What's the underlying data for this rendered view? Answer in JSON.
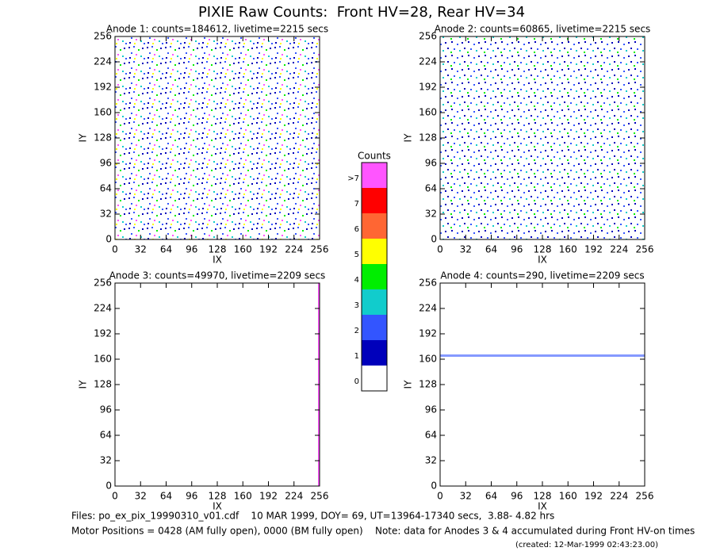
{
  "title": "PIXIE Raw Counts:  Front HV=28, Rear HV=34",
  "chart_data": [
    {
      "type": "heatmap",
      "title": "Anode 1: counts=184612, livetime=2215 secs",
      "xlabel": "IX",
      "ylabel": "IY",
      "xlim": [
        0,
        256
      ],
      "ylim": [
        0,
        256
      ],
      "xticks": [
        0,
        32,
        64,
        96,
        128,
        160,
        192,
        224,
        256
      ],
      "yticks": [
        0,
        32,
        64,
        96,
        128,
        160,
        192,
        224,
        256
      ]
    },
    {
      "type": "heatmap",
      "title": "Anode 2: counts=60865, livetime=2215 secs",
      "xlabel": "IX",
      "ylabel": "IY",
      "xlim": [
        0,
        256
      ],
      "ylim": [
        0,
        256
      ],
      "xticks": [
        0,
        32,
        64,
        96,
        128,
        160,
        192,
        224,
        256
      ],
      "yticks": [
        0,
        32,
        64,
        96,
        128,
        160,
        192,
        224,
        256
      ]
    },
    {
      "type": "heatmap",
      "title": "Anode 3: counts=49970, livetime=2209 secs",
      "xlabel": "IX",
      "ylabel": "IY",
      "xlim": [
        0,
        256
      ],
      "ylim": [
        0,
        256
      ],
      "xticks": [
        0,
        32,
        64,
        96,
        128,
        160,
        192,
        224,
        256
      ],
      "yticks": [
        0,
        32,
        64,
        96,
        128,
        160,
        192,
        224,
        256
      ]
    },
    {
      "type": "heatmap",
      "title": "Anode 4: counts=290, livetime=2209 secs",
      "xlabel": "IX",
      "ylabel": "IY",
      "xlim": [
        0,
        256
      ],
      "ylim": [
        0,
        256
      ],
      "xticks": [
        0,
        32,
        64,
        96,
        128,
        160,
        192,
        224,
        256
      ],
      "yticks": [
        0,
        32,
        64,
        96,
        128,
        160,
        192,
        224,
        256
      ]
    }
  ],
  "colorbar": {
    "title": "Counts",
    "levels": [
      {
        "label": ">7",
        "color": "#ff55ff"
      },
      {
        "label": "7",
        "color": "#ff0000"
      },
      {
        "label": "6",
        "color": "#ff6633"
      },
      {
        "label": "5",
        "color": "#ffff00"
      },
      {
        "label": "4",
        "color": "#00ee00"
      },
      {
        "label": "3",
        "color": "#11cccc"
      },
      {
        "label": "2",
        "color": "#3355ff"
      },
      {
        "label": "1",
        "color": "#0000bb"
      },
      {
        "label": "0",
        "color": "#ffffff"
      }
    ]
  },
  "footer": {
    "files": "Files: po_ex_pix_19990310_v01.cdf    10 MAR 1999, DOY= 69, UT=13964-17340 secs,  3.88- 4.82 hrs",
    "motor": "Motor Positions = 0428 (AM fully open), 0000 (BM fully open)    Note: data for Anodes 3 & 4 accumulated during Front HV-on times",
    "created": "(created: 12-Mar-1999 02:43:23.00)"
  }
}
